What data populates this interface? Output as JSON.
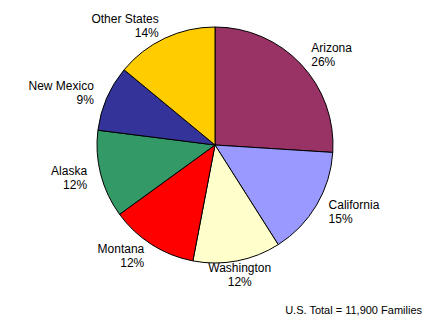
{
  "chart_data": {
    "type": "pie",
    "categories": [
      "Arizona",
      "California",
      "Washington",
      "Montana",
      "Alaska",
      "New Mexico",
      "Other States"
    ],
    "values": [
      26,
      15,
      12,
      12,
      12,
      9,
      14
    ],
    "value_labels": [
      "26%",
      "15%",
      "12%",
      "12%",
      "12%",
      "9%",
      "14%"
    ],
    "colors": [
      "#993366",
      "#9999ff",
      "#ffffcc",
      "#ff0000",
      "#339966",
      "#333399",
      "#ffcc00"
    ],
    "data_labels": true,
    "annotations": [
      "U.S. Total = 11,900 Families"
    ]
  }
}
